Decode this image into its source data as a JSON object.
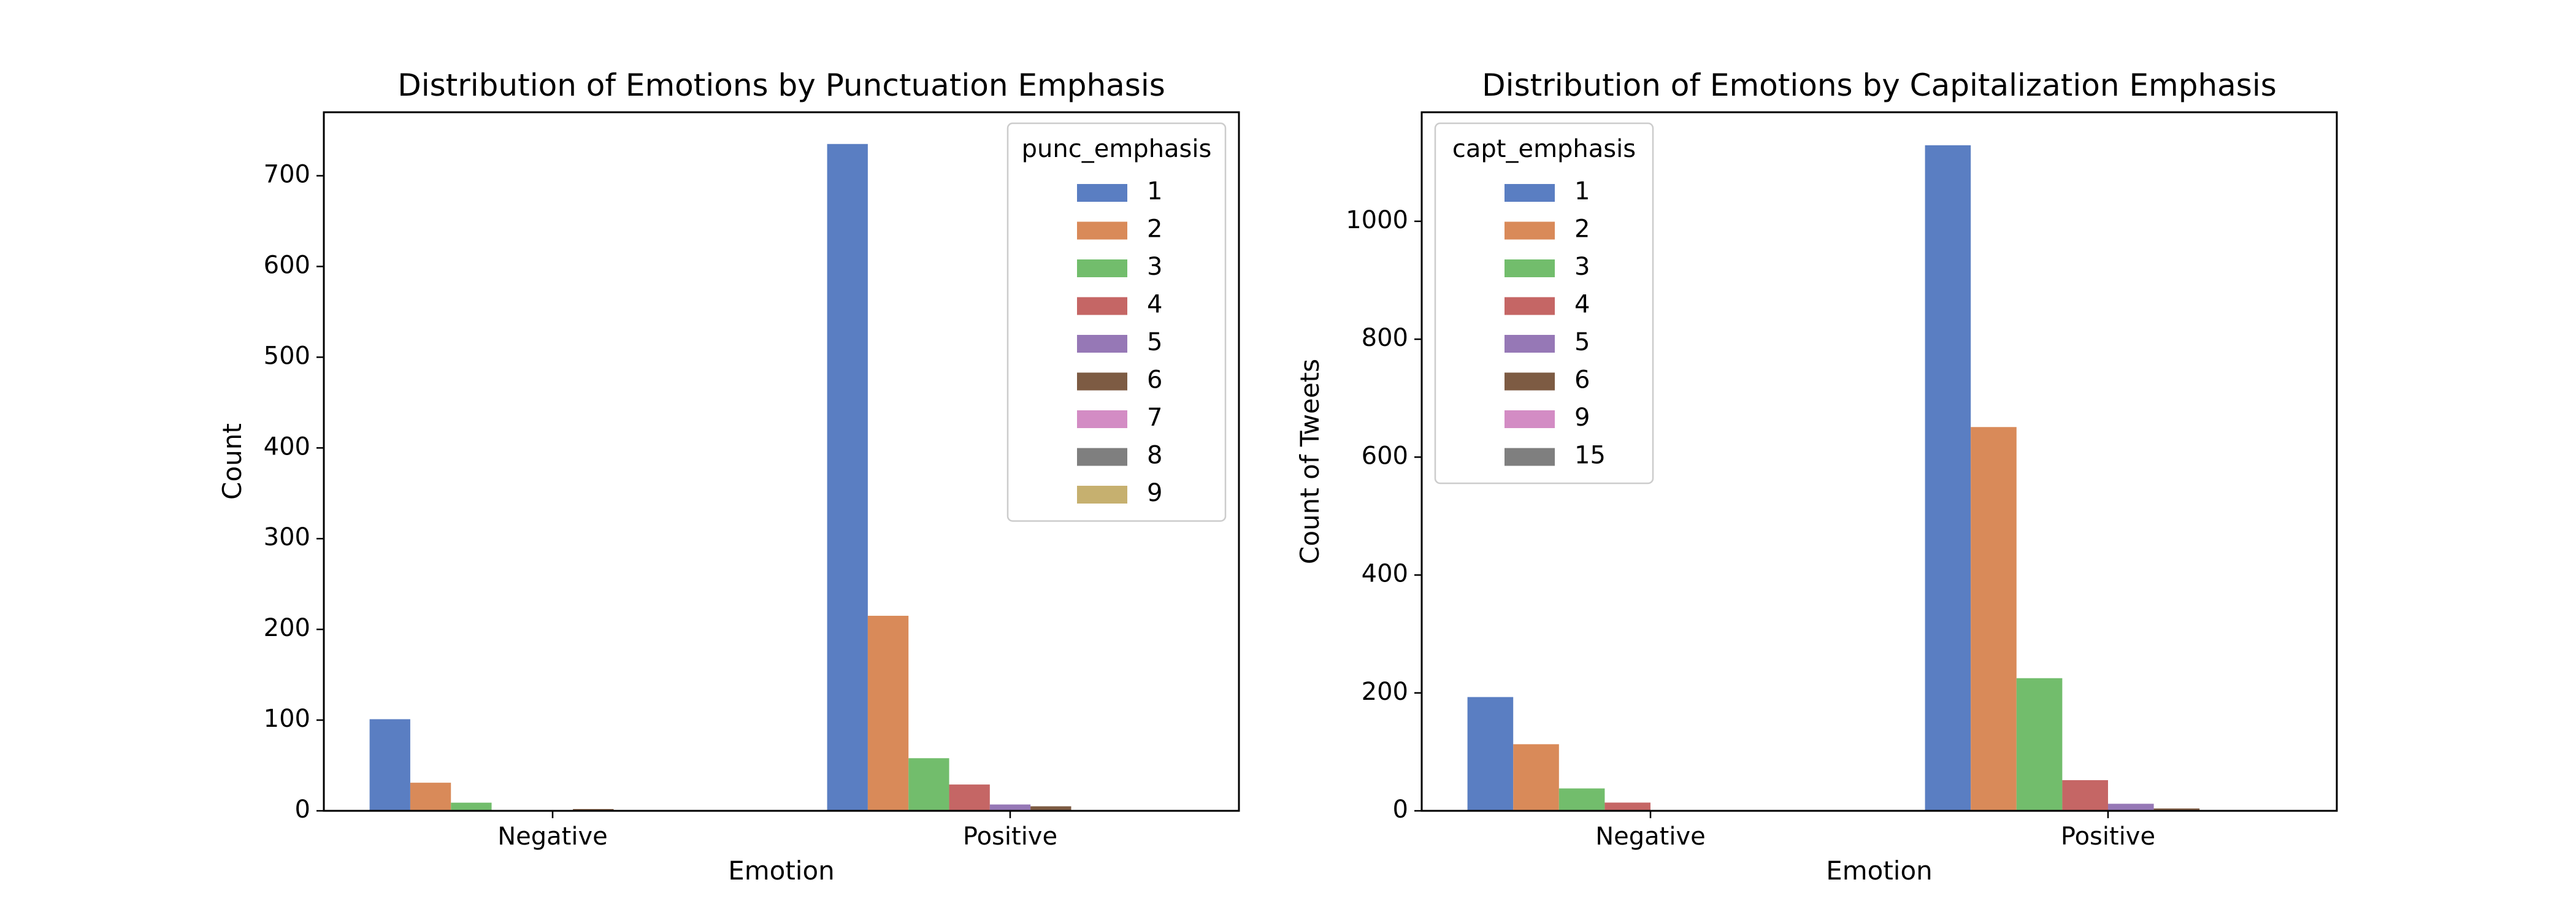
{
  "chart_data": [
    {
      "type": "bar",
      "title": "Distribution of Emotions by Punctuation Emphasis",
      "xlabel": "Emotion",
      "ylabel": "Count",
      "categories": [
        "Negative",
        "Positive"
      ],
      "ylim": [
        0,
        770
      ],
      "yticks": [
        0,
        100,
        200,
        300,
        400,
        500,
        600,
        700
      ],
      "grid": false,
      "legend": {
        "title": "punc_emphasis",
        "placement": "top-right"
      },
      "series": [
        {
          "name": "1",
          "color": "#5a7ec2",
          "values": [
            101,
            735
          ]
        },
        {
          "name": "2",
          "color": "#d98a59",
          "values": [
            31,
            215
          ]
        },
        {
          "name": "3",
          "color": "#72bd6c",
          "values": [
            9,
            58
          ]
        },
        {
          "name": "4",
          "color": "#c56665",
          "values": [
            1,
            29
          ]
        },
        {
          "name": "5",
          "color": "#9678b6",
          "values": [
            0,
            7
          ]
        },
        {
          "name": "6",
          "color": "#7d5b43",
          "values": [
            2,
            5
          ]
        },
        {
          "name": "7",
          "color": "#d38cc4",
          "values": [
            0,
            1
          ]
        },
        {
          "name": "8",
          "color": "#7f7f7f",
          "values": [
            0,
            0
          ]
        },
        {
          "name": "9",
          "color": "#c6b06f",
          "values": [
            0,
            1
          ]
        }
      ]
    },
    {
      "type": "bar",
      "title": "Distribution of Emotions by Capitalization Emphasis",
      "xlabel": "Emotion",
      "ylabel": "Count of Tweets",
      "categories": [
        "Negative",
        "Positive"
      ],
      "ylim": [
        0,
        1185
      ],
      "yticks": [
        0,
        200,
        400,
        600,
        800,
        1000
      ],
      "grid": false,
      "legend": {
        "title": "capt_emphasis",
        "placement": "top-left"
      },
      "series": [
        {
          "name": "1",
          "color": "#5a7ec2",
          "values": [
            193,
            1129
          ]
        },
        {
          "name": "2",
          "color": "#d98a59",
          "values": [
            113,
            651
          ]
        },
        {
          "name": "3",
          "color": "#72bd6c",
          "values": [
            38,
            225
          ]
        },
        {
          "name": "4",
          "color": "#c56665",
          "values": [
            14,
            52
          ]
        },
        {
          "name": "5",
          "color": "#9678b6",
          "values": [
            0,
            12
          ]
        },
        {
          "name": "6",
          "color": "#7d5b43",
          "values": [
            0,
            4
          ]
        },
        {
          "name": "9",
          "color": "#d38cc4",
          "values": [
            0,
            1
          ]
        },
        {
          "name": "15",
          "color": "#7f7f7f",
          "values": [
            0,
            0
          ]
        }
      ]
    }
  ]
}
